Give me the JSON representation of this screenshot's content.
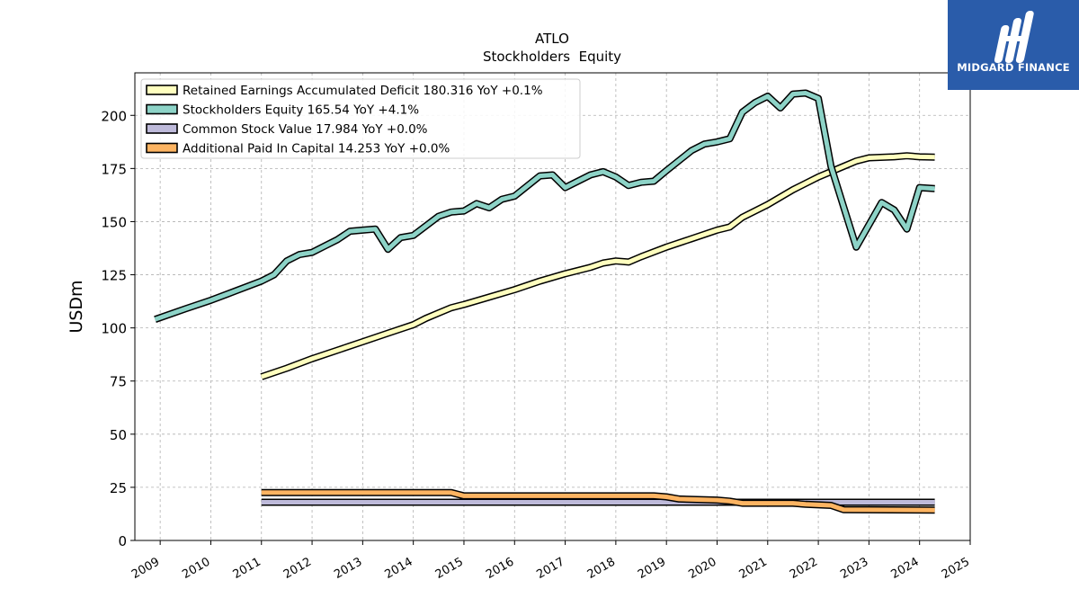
{
  "brand": {
    "name": "MIDGARD FINANCE",
    "bg": "#2a5caa"
  },
  "chart_data": {
    "type": "line",
    "title": "ATLO",
    "subtitle": "Stockholders  Equity",
    "ylabel": "USDm",
    "xlabel": "",
    "xlim": [
      2008.5,
      2025.0
    ],
    "ylim": [
      0,
      220
    ],
    "yticks": [
      0,
      25,
      50,
      75,
      100,
      125,
      150,
      175,
      200
    ],
    "xticks": [
      "2009",
      "2010",
      "2011",
      "2012",
      "2013",
      "2014",
      "2015",
      "2016",
      "2017",
      "2018",
      "2019",
      "2020",
      "2021",
      "2022",
      "2023",
      "2024",
      "2025"
    ],
    "grid": true,
    "legend_position": "top-left",
    "series": [
      {
        "name": "Retained Earnings Accumulated Deficit  180.316 YoY +0.1%",
        "color": "#ffffbf",
        "points": [
          [
            2011.0,
            77.0
          ],
          [
            2011.5,
            81.0
          ],
          [
            2012.0,
            85.5
          ],
          [
            2012.5,
            89.5
          ],
          [
            2013.0,
            93.5
          ],
          [
            2013.5,
            97.5
          ],
          [
            2014.0,
            101.5
          ],
          [
            2014.25,
            104.5
          ],
          [
            2014.5,
            107.0
          ],
          [
            2014.75,
            109.5
          ],
          [
            2015.0,
            111.0
          ],
          [
            2015.5,
            114.5
          ],
          [
            2016.0,
            118.0
          ],
          [
            2016.5,
            122.0
          ],
          [
            2017.0,
            125.5
          ],
          [
            2017.5,
            128.5
          ],
          [
            2017.75,
            130.5
          ],
          [
            2018.0,
            131.5
          ],
          [
            2018.25,
            131.0
          ],
          [
            2018.5,
            133.5
          ],
          [
            2019.0,
            138.0
          ],
          [
            2019.5,
            142.0
          ],
          [
            2020.0,
            146.0
          ],
          [
            2020.25,
            147.5
          ],
          [
            2020.5,
            152.0
          ],
          [
            2021.0,
            158.0
          ],
          [
            2021.5,
            165.0
          ],
          [
            2022.0,
            171.0
          ],
          [
            2022.5,
            176.0
          ],
          [
            2022.75,
            178.5
          ],
          [
            2023.0,
            180.0
          ],
          [
            2023.5,
            180.5
          ],
          [
            2023.75,
            181.0
          ],
          [
            2024.0,
            180.5
          ],
          [
            2024.3,
            180.3
          ]
        ]
      },
      {
        "name": "Stockholders Equity  165.54 YoY +4.1%",
        "color": "#8dd3c7",
        "points": [
          [
            2008.9,
            104.0
          ],
          [
            2009.5,
            109.0
          ],
          [
            2010.0,
            113.0
          ],
          [
            2010.5,
            117.5
          ],
          [
            2011.0,
            122.0
          ],
          [
            2011.25,
            125.0
          ],
          [
            2011.5,
            131.5
          ],
          [
            2011.75,
            134.5
          ],
          [
            2012.0,
            135.5
          ],
          [
            2012.25,
            138.5
          ],
          [
            2012.5,
            141.5
          ],
          [
            2012.75,
            145.5
          ],
          [
            2013.0,
            146.0
          ],
          [
            2013.25,
            146.5
          ],
          [
            2013.5,
            137.0
          ],
          [
            2013.75,
            142.5
          ],
          [
            2014.0,
            143.5
          ],
          [
            2014.5,
            152.5
          ],
          [
            2014.75,
            154.5
          ],
          [
            2015.0,
            155.0
          ],
          [
            2015.25,
            158.5
          ],
          [
            2015.5,
            156.5
          ],
          [
            2015.75,
            160.5
          ],
          [
            2016.0,
            162.0
          ],
          [
            2016.5,
            171.5
          ],
          [
            2016.75,
            172.0
          ],
          [
            2017.0,
            166.0
          ],
          [
            2017.5,
            172.0
          ],
          [
            2017.75,
            173.5
          ],
          [
            2018.0,
            171.0
          ],
          [
            2018.25,
            167.0
          ],
          [
            2018.5,
            168.5
          ],
          [
            2018.75,
            169.0
          ],
          [
            2019.0,
            174.0
          ],
          [
            2019.5,
            183.5
          ],
          [
            2019.75,
            186.5
          ],
          [
            2020.0,
            187.5
          ],
          [
            2020.25,
            189.0
          ],
          [
            2020.5,
            201.5
          ],
          [
            2020.75,
            206.0
          ],
          [
            2021.0,
            209.0
          ],
          [
            2021.25,
            203.5
          ],
          [
            2021.5,
            210.0
          ],
          [
            2021.75,
            210.5
          ],
          [
            2022.0,
            208.0
          ],
          [
            2022.25,
            176.0
          ],
          [
            2022.5,
            157.0
          ],
          [
            2022.75,
            138.0
          ],
          [
            2023.0,
            148.5
          ],
          [
            2023.25,
            159.0
          ],
          [
            2023.5,
            155.5
          ],
          [
            2023.75,
            146.5
          ],
          [
            2024.0,
            166.0
          ],
          [
            2024.3,
            165.5
          ]
        ]
      },
      {
        "name": "Common Stock Value  17.984 YoY +0.0%",
        "color": "#bebada",
        "points": [
          [
            2011.0,
            18.0
          ],
          [
            2014.75,
            18.0
          ],
          [
            2015.0,
            17.98
          ],
          [
            2024.3,
            17.98
          ]
        ]
      },
      {
        "name": "Additional Paid In Capital  14.253 YoY +0.0%",
        "color": "#fdb462",
        "points": [
          [
            2011.0,
            22.5
          ],
          [
            2014.75,
            22.5
          ],
          [
            2015.0,
            21.0
          ],
          [
            2018.75,
            21.0
          ],
          [
            2019.0,
            20.5
          ],
          [
            2019.25,
            19.5
          ],
          [
            2020.0,
            19.0
          ],
          [
            2020.25,
            18.5
          ],
          [
            2020.5,
            17.5
          ],
          [
            2021.5,
            17.5
          ],
          [
            2021.75,
            17.0
          ],
          [
            2022.25,
            16.5
          ],
          [
            2022.5,
            14.5
          ],
          [
            2024.3,
            14.25
          ]
        ]
      }
    ]
  }
}
